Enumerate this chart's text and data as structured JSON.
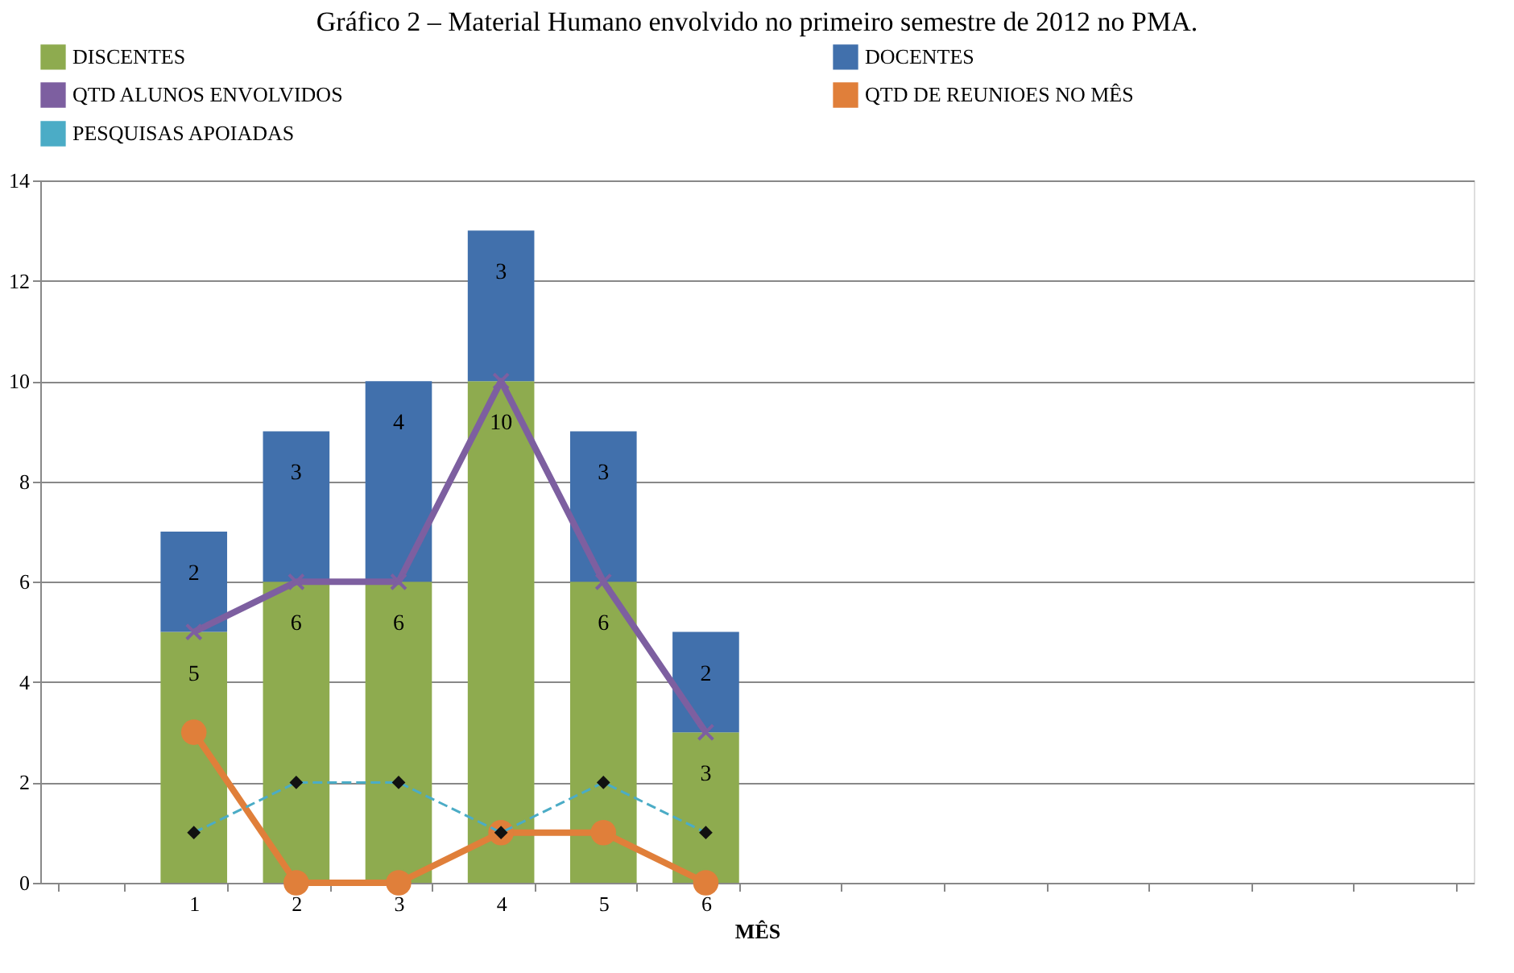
{
  "chart_data": {
    "type": "bar",
    "title": "Gráfico 2 – Material Humano envolvido no primeiro semestre de 2012 no PMA.",
    "xlabel": "MÊS",
    "categories": [
      null,
      "1",
      "2",
      "3",
      "4",
      "5",
      "6",
      null,
      null,
      null,
      null,
      null,
      null,
      null
    ],
    "stacked": true,
    "series": [
      {
        "name": "DISCENTES",
        "color": "#8eab4f",
        "values": [
          null,
          5,
          6,
          6,
          10,
          6,
          3,
          null,
          null,
          null,
          null,
          null,
          null,
          null
        ],
        "value_labels": [
          null,
          "5",
          "6",
          "6",
          "10",
          "6",
          "3",
          null,
          null,
          null,
          null,
          null,
          null,
          null
        ]
      },
      {
        "name": "DOCENTES",
        "color": "#4170ac",
        "values": [
          null,
          2,
          3,
          4,
          3,
          3,
          2,
          null,
          null,
          null,
          null,
          null,
          null,
          null
        ],
        "value_labels": [
          null,
          "2",
          "3",
          "4",
          "3",
          "3",
          "2",
          null,
          null,
          null,
          null,
          null,
          null,
          null
        ]
      },
      {
        "name": "QTD ALUNOS ENVOLVIDOS",
        "type": "line",
        "color": "#7d5fa0",
        "marker": "cross",
        "line_style": "solid",
        "values": [
          null,
          5,
          6,
          6,
          10,
          6,
          3,
          null,
          null,
          null,
          null,
          null,
          null,
          null
        ]
      },
      {
        "name": "QTD DE REUNIOES NO MÊS",
        "type": "line",
        "color": "#e07f3a",
        "marker": "circle",
        "line_style": "solid",
        "values": [
          null,
          3,
          0,
          0,
          1,
          1,
          0,
          null,
          null,
          null,
          null,
          null,
          null,
          null
        ]
      },
      {
        "name": "PESQUISAS APOIADAS",
        "type": "line",
        "color": "#4bacc6",
        "marker": "diamond",
        "line_style": "dashed",
        "values": [
          null,
          1,
          2,
          2,
          1,
          2,
          1,
          null,
          null,
          null,
          null,
          null,
          null,
          null
        ]
      }
    ],
    "ylim": [
      0,
      14
    ],
    "yticks": [
      0,
      2,
      4,
      6,
      8,
      10,
      12,
      14
    ],
    "grid": "y",
    "legend": "top"
  }
}
